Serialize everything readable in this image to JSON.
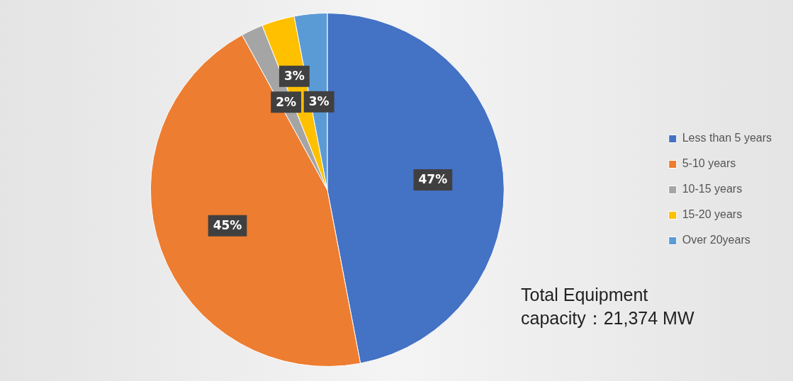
{
  "chart_data": {
    "type": "pie",
    "categories": [
      "Less than 5 years",
      "5-10 years",
      "10-15 years",
      "15-20 years",
      "Over 20years"
    ],
    "values": [
      47,
      45,
      2,
      3,
      3
    ],
    "colors": [
      "#4472c4",
      "#ed7d31",
      "#a5a5a5",
      "#ffc000",
      "#5b9bd5"
    ],
    "value_labels": [
      "47%",
      "45%",
      "2%",
      "3%",
      "3%"
    ],
    "legend": "right",
    "annotations": [
      "Total Equipment capacity：21,374 MW"
    ]
  }
}
